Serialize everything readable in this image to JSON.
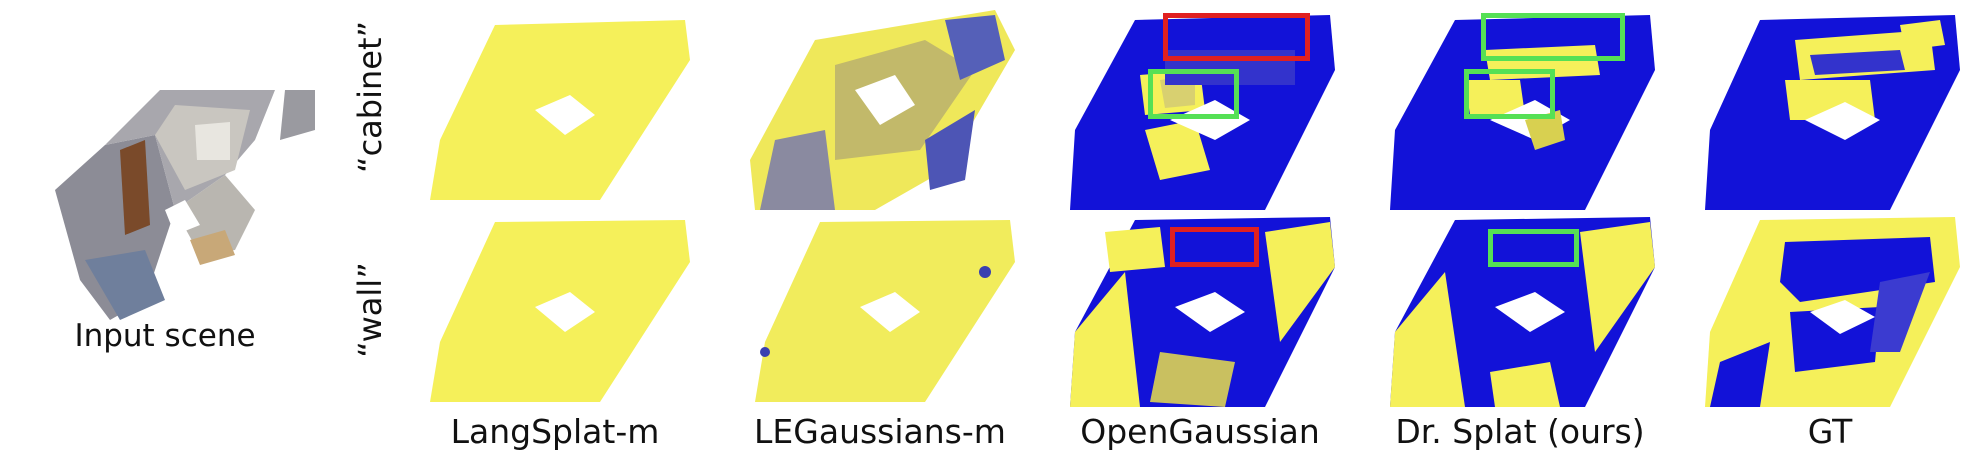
{
  "input_label": "Input scene",
  "rows": [
    {
      "label": "“cabinet”"
    },
    {
      "label": "“wall”"
    }
  ],
  "columns": [
    {
      "label": "LangSplat-m"
    },
    {
      "label": "LEGaussians-m"
    },
    {
      "label": "OpenGaussian"
    },
    {
      "label": "Dr. Splat (ours)"
    },
    {
      "label": "GT"
    }
  ],
  "colors": {
    "yellow": "#f5f05a",
    "blue": "#1212d8",
    "red_box": "#e02020",
    "green_box": "#55e055"
  }
}
